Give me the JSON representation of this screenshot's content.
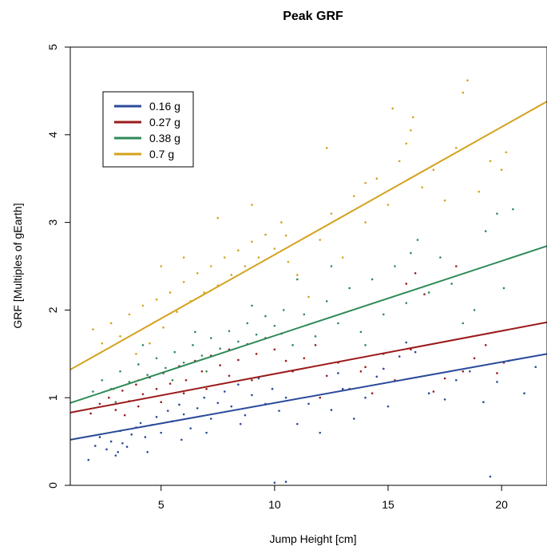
{
  "chart_data": {
    "type": "scatter",
    "title": "Peak GRF",
    "xlabel": "Jump Height [cm]",
    "ylabel": "GRF [Multiples of gEarth]",
    "xlim": [
      1,
      22
    ],
    "ylim": [
      0,
      5
    ],
    "x_ticks": [
      5,
      10,
      15,
      20
    ],
    "y_ticks": [
      0,
      1,
      2,
      3,
      4,
      5
    ],
    "grid": false,
    "legend_position": "top-left",
    "series": [
      {
        "name": "0.16 g",
        "color": "#2a4a9a",
        "fit_line": {
          "x": [
            1,
            22
          ],
          "y": [
            0.52,
            1.5
          ]
        },
        "points": [
          [
            1.8,
            0.29
          ],
          [
            2.1,
            0.45
          ],
          [
            2.3,
            0.55
          ],
          [
            2.6,
            0.41
          ],
          [
            2.8,
            0.5
          ],
          [
            3.0,
            0.34
          ],
          [
            3.2,
            0.62
          ],
          [
            3.3,
            0.48
          ],
          [
            3.5,
            0.44
          ],
          [
            3.7,
            0.58
          ],
          [
            3.9,
            0.66
          ],
          [
            4.1,
            0.71
          ],
          [
            4.3,
            0.55
          ],
          [
            4.6,
            0.69
          ],
          [
            4.8,
            0.78
          ],
          [
            5.0,
            0.6
          ],
          [
            5.3,
            0.85
          ],
          [
            5.5,
            0.73
          ],
          [
            5.8,
            0.92
          ],
          [
            6.0,
            0.81
          ],
          [
            6.3,
            0.65
          ],
          [
            6.6,
            0.88
          ],
          [
            6.9,
            1.0
          ],
          [
            7.2,
            0.76
          ],
          [
            7.5,
            0.94
          ],
          [
            7.8,
            1.07
          ],
          [
            8.1,
            0.9
          ],
          [
            8.4,
            1.15
          ],
          [
            8.7,
            0.8
          ],
          [
            9.0,
            1.03
          ],
          [
            9.3,
            1.22
          ],
          [
            9.6,
            0.93
          ],
          [
            9.9,
            1.1
          ],
          [
            10.2,
            0.85
          ],
          [
            10.5,
            1.0
          ],
          [
            11.0,
            0.7
          ],
          [
            11.5,
            0.93
          ],
          [
            12.0,
            0.6
          ],
          [
            12.5,
            0.86
          ],
          [
            13.0,
            1.1
          ],
          [
            13.5,
            0.76
          ],
          [
            14.0,
            1.0
          ],
          [
            14.5,
            1.24
          ],
          [
            15.0,
            0.9
          ],
          [
            15.5,
            1.47
          ],
          [
            15.8,
            1.63
          ],
          [
            16.2,
            1.52
          ],
          [
            16.8,
            1.05
          ],
          [
            17.5,
            0.98
          ],
          [
            18.0,
            1.2
          ],
          [
            18.6,
            1.3
          ],
          [
            19.2,
            0.95
          ],
          [
            19.8,
            1.18
          ],
          [
            20.3,
            1.42
          ],
          [
            21.0,
            1.05
          ],
          [
            21.5,
            1.35
          ],
          [
            19.5,
            0.1
          ],
          [
            10.0,
            0.03
          ],
          [
            10.5,
            0.04
          ],
          [
            4.4,
            0.38
          ],
          [
            3.1,
            0.38
          ],
          [
            5.9,
            0.52
          ],
          [
            7.0,
            0.6
          ],
          [
            8.5,
            0.7
          ],
          [
            12.8,
            1.28
          ],
          [
            14.8,
            1.33
          ]
        ]
      },
      {
        "name": "0.27 g",
        "color": "#9b1a1a",
        "fit_line": {
          "x": [
            1,
            22
          ],
          "y": [
            0.83,
            1.86
          ]
        },
        "points": [
          [
            1.9,
            0.82
          ],
          [
            2.3,
            0.93
          ],
          [
            2.7,
            1.0
          ],
          [
            3.0,
            0.86
          ],
          [
            3.3,
            1.08
          ],
          [
            3.6,
            0.96
          ],
          [
            3.9,
            1.15
          ],
          [
            4.2,
            1.04
          ],
          [
            4.5,
            1.23
          ],
          [
            4.8,
            1.1
          ],
          [
            5.1,
            1.28
          ],
          [
            5.4,
            1.16
          ],
          [
            5.8,
            1.36
          ],
          [
            6.1,
            1.2
          ],
          [
            6.5,
            1.42
          ],
          [
            6.8,
            1.3
          ],
          [
            7.2,
            1.48
          ],
          [
            7.6,
            1.37
          ],
          [
            8.0,
            1.55
          ],
          [
            8.4,
            1.43
          ],
          [
            8.8,
            1.61
          ],
          [
            9.2,
            1.5
          ],
          [
            9.6,
            1.68
          ],
          [
            10.0,
            1.55
          ],
          [
            10.3,
            1.73
          ],
          [
            10.8,
            1.3
          ],
          [
            11.3,
            1.45
          ],
          [
            11.8,
            1.6
          ],
          [
            12.3,
            1.25
          ],
          [
            12.8,
            1.4
          ],
          [
            13.3,
            1.1
          ],
          [
            13.8,
            1.3
          ],
          [
            14.3,
            1.05
          ],
          [
            14.8,
            1.5
          ],
          [
            15.3,
            1.2
          ],
          [
            15.8,
            2.3
          ],
          [
            16.2,
            2.42
          ],
          [
            16.6,
            2.18
          ],
          [
            17.0,
            1.07
          ],
          [
            17.5,
            1.22
          ],
          [
            18.0,
            2.5
          ],
          [
            18.3,
            1.3
          ],
          [
            18.8,
            1.45
          ],
          [
            19.3,
            1.6
          ],
          [
            19.8,
            1.28
          ],
          [
            20.1,
            1.4
          ],
          [
            3.4,
            0.8
          ],
          [
            5.0,
            0.95
          ],
          [
            7.0,
            1.1
          ],
          [
            9.0,
            1.2
          ],
          [
            12.0,
            1.0
          ],
          [
            14.0,
            1.35
          ],
          [
            16.0,
            1.55
          ],
          [
            2.9,
            1.1
          ],
          [
            4.0,
            0.9
          ],
          [
            6.0,
            1.05
          ],
          [
            8.0,
            1.25
          ],
          [
            10.5,
            1.42
          ]
        ]
      },
      {
        "name": "0.38 g",
        "color": "#2e8b57",
        "fit_line": {
          "x": [
            1,
            22
          ],
          "y": [
            0.94,
            2.73
          ]
        },
        "points": [
          [
            2.0,
            1.07
          ],
          [
            2.4,
            1.2
          ],
          [
            2.8,
            1.1
          ],
          [
            3.2,
            1.3
          ],
          [
            3.6,
            1.18
          ],
          [
            4.0,
            1.38
          ],
          [
            4.4,
            1.26
          ],
          [
            4.8,
            1.45
          ],
          [
            5.2,
            1.34
          ],
          [
            5.6,
            1.52
          ],
          [
            6.0,
            1.4
          ],
          [
            6.4,
            1.6
          ],
          [
            6.8,
            1.48
          ],
          [
            7.2,
            1.68
          ],
          [
            7.6,
            1.56
          ],
          [
            8.0,
            1.76
          ],
          [
            8.4,
            1.64
          ],
          [
            8.8,
            1.85
          ],
          [
            9.2,
            1.72
          ],
          [
            9.6,
            1.93
          ],
          [
            10.0,
            1.82
          ],
          [
            10.4,
            2.0
          ],
          [
            10.8,
            1.6
          ],
          [
            11.3,
            1.95
          ],
          [
            11.8,
            1.7
          ],
          [
            12.3,
            2.1
          ],
          [
            12.8,
            1.85
          ],
          [
            13.3,
            2.25
          ],
          [
            13.8,
            1.75
          ],
          [
            14.3,
            2.35
          ],
          [
            14.8,
            1.95
          ],
          [
            15.3,
            2.5
          ],
          [
            15.8,
            2.08
          ],
          [
            16.3,
            2.8
          ],
          [
            16.8,
            2.2
          ],
          [
            17.3,
            2.6
          ],
          [
            17.8,
            2.3
          ],
          [
            18.3,
            1.85
          ],
          [
            18.8,
            2.0
          ],
          [
            19.3,
            2.9
          ],
          [
            19.8,
            3.1
          ],
          [
            20.1,
            2.25
          ],
          [
            20.5,
            3.15
          ],
          [
            4.2,
            1.6
          ],
          [
            5.5,
            1.2
          ],
          [
            7.0,
            1.3
          ],
          [
            9.0,
            2.05
          ],
          [
            11.0,
            2.35
          ],
          [
            12.5,
            2.5
          ],
          [
            14.0,
            1.6
          ],
          [
            16.0,
            2.65
          ],
          [
            3.0,
            0.95
          ],
          [
            6.5,
            1.75
          ]
        ]
      },
      {
        "name": "0.7 g",
        "color": "#d4a21c",
        "fit_line": {
          "x": [
            1,
            22
          ],
          "y": [
            1.32,
            4.38
          ]
        },
        "points": [
          [
            2.0,
            1.78
          ],
          [
            2.4,
            1.62
          ],
          [
            2.8,
            1.85
          ],
          [
            3.2,
            1.7
          ],
          [
            3.6,
            1.95
          ],
          [
            3.9,
            1.5
          ],
          [
            4.2,
            2.05
          ],
          [
            4.5,
            1.62
          ],
          [
            4.8,
            2.12
          ],
          [
            5.1,
            1.8
          ],
          [
            5.4,
            2.2
          ],
          [
            5.7,
            1.98
          ],
          [
            6.0,
            2.32
          ],
          [
            6.3,
            2.1
          ],
          [
            6.6,
            2.42
          ],
          [
            6.9,
            2.2
          ],
          [
            7.2,
            2.5
          ],
          [
            7.5,
            2.28
          ],
          [
            7.8,
            2.6
          ],
          [
            8.1,
            2.4
          ],
          [
            8.4,
            2.68
          ],
          [
            8.7,
            2.5
          ],
          [
            9.0,
            2.78
          ],
          [
            9.3,
            2.6
          ],
          [
            9.6,
            2.86
          ],
          [
            10.0,
            2.7
          ],
          [
            10.3,
            3.0
          ],
          [
            10.6,
            2.55
          ],
          [
            11.0,
            2.4
          ],
          [
            11.5,
            2.15
          ],
          [
            12.0,
            2.8
          ],
          [
            12.5,
            3.1
          ],
          [
            13.0,
            2.6
          ],
          [
            13.5,
            3.3
          ],
          [
            14.0,
            3.0
          ],
          [
            14.5,
            3.5
          ],
          [
            15.0,
            3.2
          ],
          [
            15.5,
            3.7
          ],
          [
            16.0,
            4.05
          ],
          [
            16.5,
            3.4
          ],
          [
            17.0,
            3.6
          ],
          [
            17.5,
            3.25
          ],
          [
            18.0,
            3.85
          ],
          [
            18.3,
            4.48
          ],
          [
            18.5,
            4.62
          ],
          [
            19.0,
            3.35
          ],
          [
            19.5,
            3.7
          ],
          [
            20.0,
            3.6
          ],
          [
            20.2,
            3.8
          ],
          [
            12.3,
            3.85
          ],
          [
            15.2,
            4.3
          ],
          [
            16.1,
            4.2
          ],
          [
            4.0,
            1.2
          ],
          [
            5.0,
            2.5
          ],
          [
            6.0,
            2.6
          ],
          [
            7.5,
            3.05
          ],
          [
            9.0,
            3.2
          ],
          [
            10.5,
            2.85
          ],
          [
            14.0,
            3.45
          ],
          [
            15.8,
            3.9
          ]
        ]
      }
    ]
  }
}
